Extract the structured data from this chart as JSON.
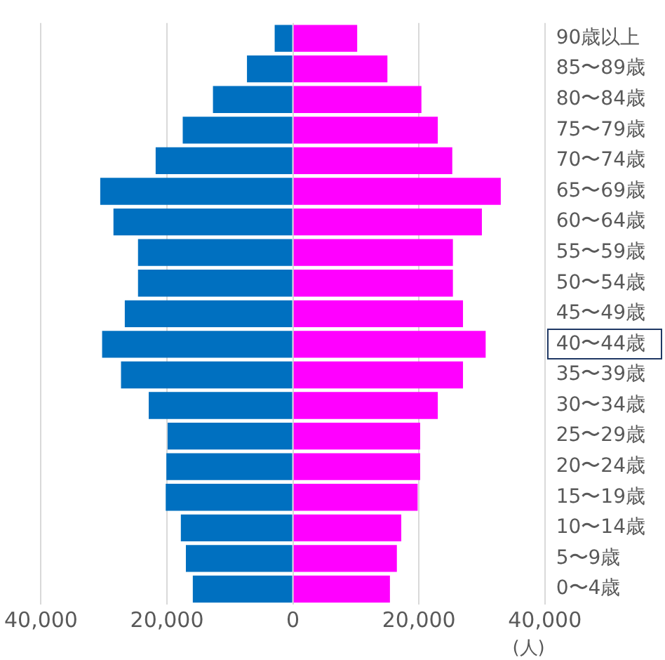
{
  "chart_data": {
    "type": "bar",
    "orientation": "horizontal",
    "stacked": true,
    "xlabel": "(人)",
    "categories": [
      "90歳以上",
      "85〜89歳",
      "80〜84歳",
      "75〜79歳",
      "70〜74歳",
      "65〜69歳",
      "60〜64歳",
      "55〜59歳",
      "50〜54歳",
      "45〜49歳",
      "40〜44歳",
      "35〜39歳",
      "30〜34歳",
      "25〜29歳",
      "20〜24歳",
      "15〜19歳",
      "10〜14歳",
      "5〜9歳",
      "0〜4歳"
    ],
    "series": [
      {
        "color": "#0070c0",
        "values": [
          -2900,
          -7300,
          -12700,
          -17500,
          -21800,
          -30600,
          -28500,
          -24600,
          -24600,
          -26700,
          -30300,
          -27300,
          -22900,
          -19900,
          -20100,
          -20200,
          -17800,
          -17000,
          -15900
        ]
      },
      {
        "color": "#ff00ff",
        "values": [
          10200,
          15000,
          20400,
          23000,
          25300,
          33000,
          30000,
          25400,
          25400,
          27000,
          30600,
          27000,
          23000,
          20200,
          20200,
          19800,
          17200,
          16500,
          15400
        ]
      }
    ],
    "xlim": [
      -40000,
      40000
    ],
    "xticks": [
      {
        "value": -40000,
        "label": "40,000"
      },
      {
        "value": -20000,
        "label": "20,000"
      },
      0,
      {
        "value": 20000,
        "label": "20,000"
      },
      {
        "value": 40000,
        "label": "40,000"
      }
    ],
    "grid": "x",
    "legend": false
  }
}
